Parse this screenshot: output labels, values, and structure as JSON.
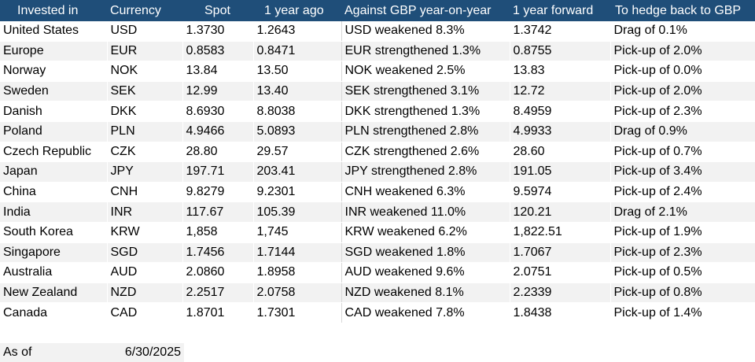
{
  "table": {
    "headers": [
      "Invested in",
      "Currency",
      "Spot",
      "1 year ago",
      "Against GBP year-on-year",
      "1 year forward",
      "To hedge back to GBP"
    ],
    "rows": [
      [
        "United States",
        "USD",
        "1.3730",
        "1.2643",
        "USD weakened 8.3%",
        "1.3742",
        "Drag of 0.1%"
      ],
      [
        "Europe",
        "EUR",
        "0.8583",
        "0.8471",
        "EUR strengthened 1.3%",
        "0.8755",
        "Pick-up of 2.0%"
      ],
      [
        "Norway",
        "NOK",
        "13.84",
        "13.50",
        "NOK weakened 2.5%",
        "13.83",
        "Pick-up of 0.0%"
      ],
      [
        "Sweden",
        "SEK",
        "12.99",
        "13.40",
        "SEK strengthened 3.1%",
        "12.72",
        "Pick-up of 2.0%"
      ],
      [
        "Danish",
        "DKK",
        "8.6930",
        "8.8038",
        "DKK strengthened 1.3%",
        "8.4959",
        "Pick-up of 2.3%"
      ],
      [
        "Poland",
        "PLN",
        "4.9466",
        "5.0893",
        "PLN strengthened 2.8%",
        "4.9933",
        "Drag of 0.9%"
      ],
      [
        "Czech Republic",
        "CZK",
        "28.80",
        "29.57",
        "CZK strengthened 2.6%",
        "28.60",
        "Pick-up of 0.7%"
      ],
      [
        "Japan",
        "JPY",
        "197.71",
        "203.41",
        "JPY strengthened 2.8%",
        "191.05",
        "Pick-up of 3.4%"
      ],
      [
        "China",
        "CNH",
        "9.8279",
        "9.2301",
        "CNH weakened 6.3%",
        "9.5974",
        "Pick-up of 2.4%"
      ],
      [
        "India",
        "INR",
        "117.67",
        "105.39",
        "INR weakened 11.0%",
        "120.21",
        "Drag of 2.1%"
      ],
      [
        "South Korea",
        "KRW",
        "1,858",
        "1,745",
        "KRW weakened 6.2%",
        "1,822.51",
        "Pick-up of 1.9%"
      ],
      [
        "Singapore",
        "SGD",
        "1.7456",
        "1.7144",
        "SGD weakened 1.8%",
        "1.7067",
        "Pick-up of 2.3%"
      ],
      [
        "Australia",
        "AUD",
        "2.0860",
        "1.8958",
        "AUD weakened 9.6%",
        "2.0751",
        "Pick-up of 0.5%"
      ],
      [
        "New Zealand",
        "NZD",
        "2.2517",
        "2.0758",
        "NZD weakened 8.1%",
        "2.2339",
        "Pick-up of 0.8%"
      ],
      [
        "Canada",
        "CAD",
        "1.8701",
        "1.7301",
        "CAD weakened 7.8%",
        "1.8438",
        "Pick-up of 1.4%"
      ]
    ]
  },
  "footer": {
    "as_of_label": "As of",
    "as_of_value": "6/30/2025"
  },
  "colors": {
    "header_bg": "#1f4e79",
    "header_text": "#ffffff",
    "stripe_bg": "#f2f2f2"
  }
}
